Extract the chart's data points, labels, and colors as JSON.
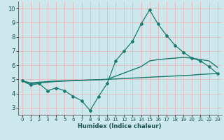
{
  "xlabel": "Humidex (Indice chaleur)",
  "bg_color": "#cce8ec",
  "grid_color": "#e8b8b8",
  "line_color": "#1a7a6e",
  "xlim": [
    -0.5,
    23.5
  ],
  "ylim": [
    2.5,
    10.5
  ],
  "xticks": [
    0,
    1,
    2,
    3,
    4,
    5,
    6,
    7,
    8,
    9,
    10,
    11,
    12,
    13,
    14,
    15,
    16,
    17,
    18,
    19,
    20,
    21,
    22,
    23
  ],
  "yticks": [
    3,
    4,
    5,
    6,
    7,
    8,
    9,
    10
  ],
  "line1_x": [
    0,
    1,
    2,
    3,
    4,
    5,
    6,
    7,
    8,
    9,
    10,
    11,
    12,
    13,
    14,
    15,
    16,
    17,
    18,
    19,
    20,
    21,
    22,
    23
  ],
  "line1_y": [
    4.9,
    4.6,
    4.7,
    4.2,
    4.4,
    4.2,
    3.8,
    3.5,
    2.8,
    3.8,
    4.7,
    6.3,
    7.0,
    7.7,
    8.9,
    9.9,
    8.9,
    8.1,
    7.4,
    6.9,
    6.5,
    6.3,
    5.9,
    5.4
  ],
  "line2_x": [
    0,
    1,
    2,
    3,
    4,
    5,
    10,
    14,
    15,
    16,
    19,
    20,
    21,
    22,
    23
  ],
  "line2_y": [
    4.9,
    4.7,
    4.75,
    4.8,
    4.85,
    4.88,
    5.0,
    5.9,
    6.3,
    6.4,
    6.55,
    6.5,
    6.4,
    6.3,
    5.85
  ],
  "line3_x": [
    0,
    1,
    2,
    3,
    4,
    5,
    10,
    15,
    20,
    21,
    22,
    23
  ],
  "line3_y": [
    4.9,
    4.75,
    4.8,
    4.85,
    4.88,
    4.9,
    5.0,
    5.15,
    5.3,
    5.35,
    5.38,
    5.42
  ]
}
